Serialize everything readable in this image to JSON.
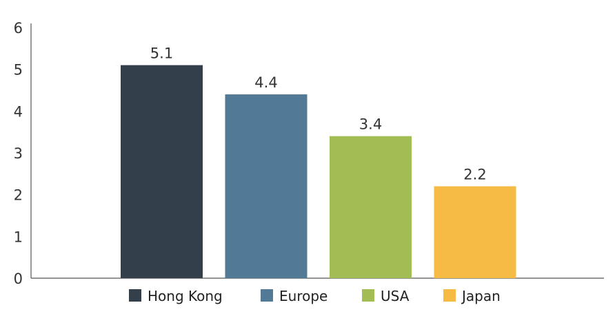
{
  "chart_data": {
    "type": "bar",
    "title": "",
    "xlabel": "",
    "ylabel": "",
    "ylim": [
      0,
      6
    ],
    "yticks": [
      0,
      1,
      2,
      3,
      4,
      5,
      6
    ],
    "grid": false,
    "legend_position": "bottom",
    "series": [
      {
        "name": "Hong Kong",
        "value": 5.1,
        "label": "5.1",
        "color": "#333f4a"
      },
      {
        "name": "Europe",
        "value": 4.4,
        "label": "4.4",
        "color": "#527a96"
      },
      {
        "name": "USA",
        "value": 3.4,
        "label": "3.4",
        "color": "#a3bd55"
      },
      {
        "name": "Japan",
        "value": 2.2,
        "label": "2.2",
        "color": "#f5bb45"
      }
    ],
    "axis_color": "#555555"
  }
}
